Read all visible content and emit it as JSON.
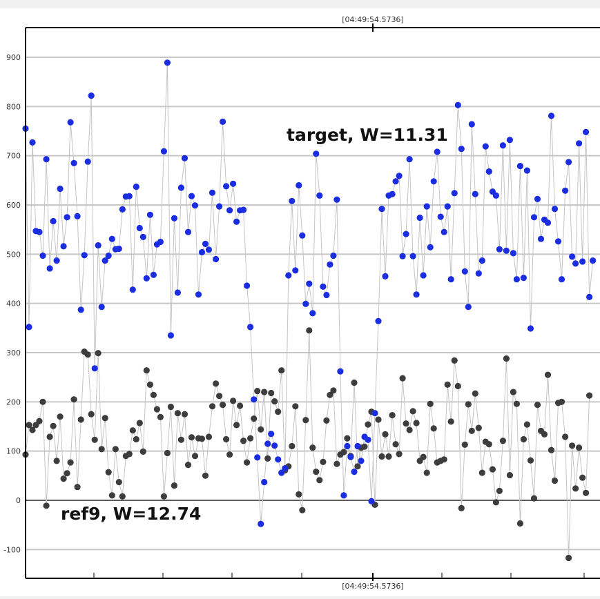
{
  "chart_data": {
    "type": "scatter",
    "title": "",
    "xlabel": "",
    "ylabel": "",
    "ylim": [
      -130,
      960
    ],
    "y_ticks": [
      900,
      800,
      700,
      600,
      500,
      400,
      300,
      200,
      100,
      0,
      -100
    ],
    "y_tick_labels": [
      "900",
      "800",
      "700",
      "600",
      "500",
      "400",
      "300",
      "200",
      "100",
      "0",
      "-100"
    ],
    "x_marker_label_top": "[04:49:54.5736]",
    "x_marker_label_bottom": "[04:49:54.5736]",
    "grid": true,
    "connect_points": true,
    "colors": {
      "target": "#1a2de0",
      "ref9": "#3d3d3d",
      "line": "#c4c4c4",
      "grid": "#c8c8c8",
      "zero_line": "#5a5a5a"
    },
    "annotations": [
      {
        "text": "target, W=11.31",
        "series": "target"
      },
      {
        "text": "ref9, W=12.74",
        "series": "ref9"
      }
    ],
    "series": [
      {
        "name": "target",
        "values": [
          755,
          352,
          727,
          547,
          545,
          497,
          693,
          471,
          567,
          487,
          633,
          516,
          575,
          768,
          685,
          577,
          387,
          498,
          688,
          822,
          268,
          518,
          393,
          487,
          497,
          531,
          510,
          511,
          591,
          617,
          618,
          428,
          637,
          553,
          535,
          451,
          580,
          458,
          520,
          525,
          709,
          889,
          335,
          573,
          422,
          635,
          695,
          545,
          618,
          599,
          418,
          504,
          521,
          509,
          625,
          490,
          597,
          769,
          638,
          589,
          643,
          566,
          589,
          590,
          436,
          352,
          205,
          87,
          -48,
          37,
          115,
          135,
          111,
          83,
          56,
          65,
          457,
          608,
          467,
          640,
          538,
          399,
          440,
          380,
          704,
          619,
          434,
          417,
          479,
          497,
          611,
          262,
          10,
          110,
          88,
          58,
          110,
          80,
          129,
          123,
          -2,
          177,
          364,
          592,
          455,
          619,
          622,
          648,
          659,
          496,
          541,
          693,
          496,
          418,
          574,
          457,
          597,
          514,
          648,
          708,
          576,
          545,
          597,
          449,
          624,
          803,
          714,
          465,
          393,
          764,
          622,
          461,
          487,
          719,
          668,
          627,
          619,
          510,
          721,
          507,
          732,
          502,
          449,
          679,
          452,
          670,
          349,
          575,
          612,
          531,
          570,
          564,
          781,
          592,
          526,
          449,
          629,
          687,
          495,
          481,
          725,
          485,
          748,
          413,
          487
        ],
        "x_start": 0
      },
      {
        "name": "ref9",
        "values": [
          93,
          153,
          143,
          153,
          161,
          200,
          -11,
          129,
          151,
          80,
          170,
          44,
          55,
          77,
          205,
          27,
          164,
          302,
          296,
          175,
          123,
          299,
          104,
          167,
          57,
          10,
          104,
          37,
          8,
          90,
          94,
          142,
          124,
          157,
          99,
          264,
          235,
          214,
          185,
          169,
          8,
          96,
          190,
          30,
          177,
          123,
          175,
          72,
          128,
          90,
          126,
          125,
          50,
          129,
          191,
          237,
          212,
          194,
          124,
          93,
          202,
          153,
          192,
          121,
          77,
          126,
          166,
          222,
          144,
          220,
          85,
          218,
          201,
          180,
          264,
          61,
          69,
          110,
          191,
          12,
          -20,
          163,
          345,
          107,
          58,
          41,
          78,
          162,
          214,
          223,
          74,
          93,
          98,
          126,
          90,
          239,
          69,
          107,
          109,
          154,
          180,
          -9,
          164,
          89,
          134,
          89,
          173,
          114,
          94,
          248,
          156,
          143,
          181,
          157,
          80,
          88,
          56,
          196,
          146,
          77,
          80,
          83,
          235,
          160,
          284,
          232,
          -16,
          113,
          195,
          141,
          217,
          147,
          56,
          119,
          114,
          63,
          -4,
          19,
          121,
          288,
          51,
          220,
          196,
          -47,
          124,
          154,
          81,
          4,
          194,
          141,
          134,
          255,
          102,
          40,
          198,
          200,
          129,
          -117,
          111,
          24,
          107,
          46,
          15,
          213
        ],
        "x_start": 0
      }
    ]
  }
}
